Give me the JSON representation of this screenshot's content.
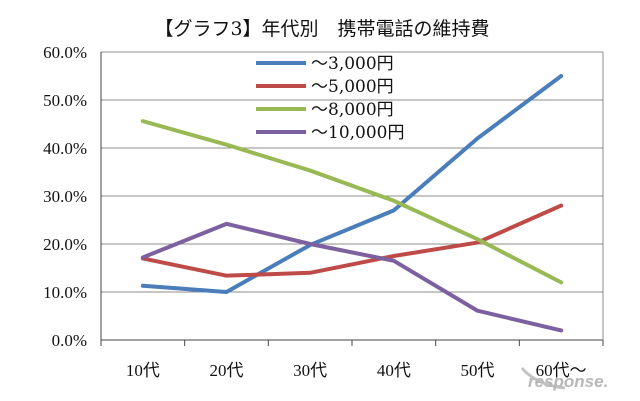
{
  "chart_data": {
    "type": "line",
    "title": "【グラフ3】年代別　携帯電話の維持費",
    "categories": [
      "10代",
      "20代",
      "30代",
      "40代",
      "50代",
      "60代～"
    ],
    "yticks": [
      "0.0%",
      "10.0%",
      "20.0%",
      "30.0%",
      "40.0%",
      "50.0%",
      "60.0%"
    ],
    "ylim": [
      0,
      60
    ],
    "grid": true,
    "legend_position": "top-right",
    "series": [
      {
        "name": "～3,000円",
        "color": "#4a7ebb",
        "values": [
          11.3,
          10.0,
          19.8,
          27.0,
          42.0,
          55.0
        ]
      },
      {
        "name": "～5,000円",
        "color": "#be4b48",
        "values": [
          17.0,
          13.4,
          14.0,
          17.5,
          20.3,
          28.0
        ]
      },
      {
        "name": "～8,000円",
        "color": "#98b954",
        "values": [
          45.6,
          40.7,
          35.3,
          29.0,
          21.0,
          12.0
        ]
      },
      {
        "name": "～10,000円",
        "color": "#7d60a0",
        "values": [
          17.2,
          24.2,
          20.0,
          16.5,
          6.1,
          2.0
        ]
      }
    ]
  },
  "watermark": "response."
}
